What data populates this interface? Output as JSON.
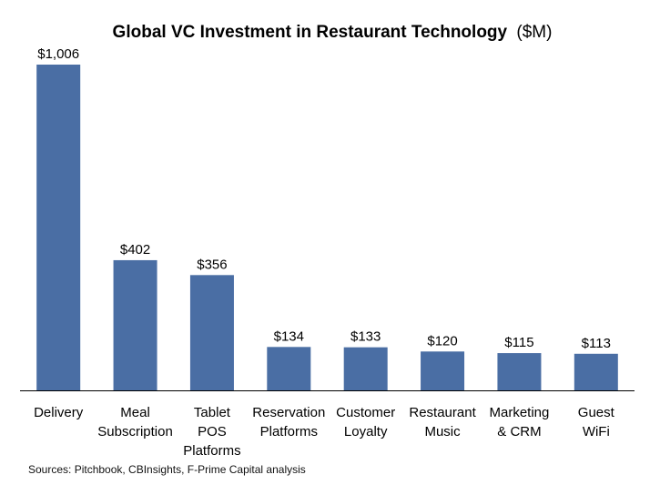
{
  "chart_data": {
    "type": "bar",
    "title": "Global VC Investment in Restaurant Technology",
    "title_unit": "($M)",
    "categories": [
      [
        "Delivery"
      ],
      [
        "Meal",
        "Subscription"
      ],
      [
        "Tablet",
        "POS",
        "Platforms"
      ],
      [
        "Reservation",
        "Platforms"
      ],
      [
        "Customer",
        "Loyalty"
      ],
      [
        "Restaurant",
        "Music"
      ],
      [
        "Marketing",
        "& CRM"
      ],
      [
        "Guest",
        "WiFi"
      ]
    ],
    "values": [
      1006,
      402,
      356,
      134,
      133,
      120,
      115,
      113
    ],
    "data_labels": [
      "$1,006",
      "$402",
      "$356",
      "$134",
      "$133",
      "$120",
      "$115",
      "$113"
    ],
    "ylim": [
      0,
      1006
    ],
    "xlabel": "",
    "ylabel": "",
    "grid": false,
    "bar_color": "#4a6ea4",
    "axis_color": "#000000"
  },
  "source_note": "Sources: Pitchbook, CBInsights, F-Prime Capital analysis"
}
